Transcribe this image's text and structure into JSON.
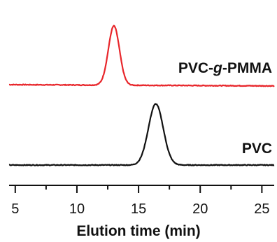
{
  "chart_data": {
    "type": "line",
    "title": "",
    "xlabel": "Elution time (min)",
    "ylabel": "",
    "xlim": [
      4.5,
      26
    ],
    "x_ticks_major": [
      5,
      10,
      15,
      20,
      25
    ],
    "x_tick_labels": [
      "5",
      "10",
      "15",
      "20",
      "25"
    ],
    "x_ticks_minor": [
      7.5,
      12.5,
      17.5,
      22.5
    ],
    "y_axis_shown": false,
    "grid": false,
    "legend": "none",
    "series": [
      {
        "name": "PVC-g-PMMA",
        "label_parts": [
          "PVC-",
          "g",
          "-PMMA"
        ],
        "color": "#e8262b",
        "baseline": 1.25,
        "peak_center": 13.0,
        "peak_height": 0.92,
        "peak_width_sigma": 0.45,
        "baseline_drift": -0.02
      },
      {
        "name": "PVC",
        "color": "#111111",
        "baseline": 0.0,
        "peak_center": 16.4,
        "peak_height": 0.95,
        "peak_width_sigma": 0.6,
        "baseline_drift": 0.0
      }
    ]
  }
}
